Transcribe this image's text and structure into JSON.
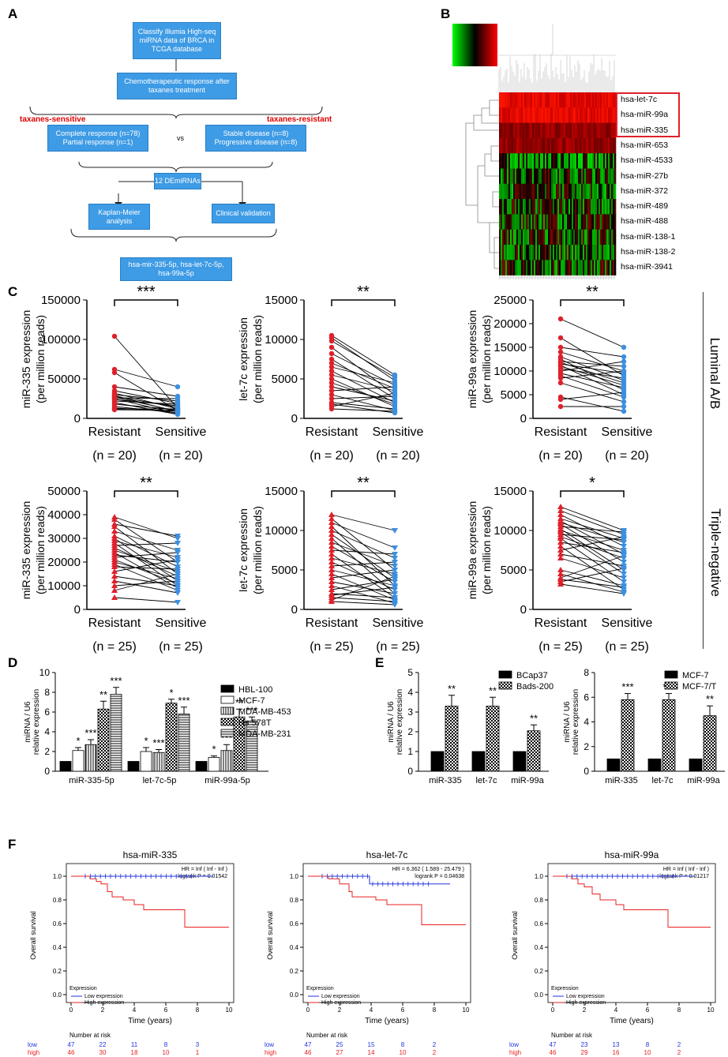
{
  "panel_labels": {
    "A": "A",
    "B": "B",
    "C": "C",
    "D": "D",
    "E": "E",
    "F": "F"
  },
  "flow": {
    "box1": "Classify Illumia High-seq miRNA data of BRCA in TCGA database",
    "box2": "Chemotherapeutic response after taxanes treatment",
    "sensitive_label": "taxanes-sensitive",
    "resistant_label": "taxanes-resistant",
    "box3": "Complete response (n=78) Partial response (n=1)",
    "vs": "vs",
    "box4": "Stable disease (n=8) Progressive disease (n=8)",
    "box5": "12 DEmiRNAs",
    "box6": "Kaplan-Meier analysis",
    "box7": "Clinical validation",
    "box8": "hsa-mir-335-5p, hsa-let-7c-5p, hsa-99a-5p"
  },
  "heatmap": {
    "genes": [
      "hsa-let-7c",
      "hsa-miR-99a",
      "hsa-miR-335",
      "hsa-miR-653",
      "hsa-miR-4533",
      "hsa-miR-27b",
      "hsa-miR-372",
      "hsa-miR-489",
      "hsa-miR-488",
      "hsa-miR-138-1",
      "hsa-miR-138-2",
      "hsa-miR-3941"
    ],
    "highlight_color": "#e0202a"
  },
  "side_labels": {
    "top": "Luminal A/B",
    "bottom": "Triple-negative"
  },
  "colors": {
    "resistant": "#e0202a",
    "sensitive": "#3b8fe0",
    "km_low": "#2233dd",
    "km_high": "#e82020"
  },
  "chart_data": [
    {
      "type": "paired-scatter",
      "id": "C1",
      "ylabel": "miR-335 expression",
      "ylabel2": "(per million reads)",
      "ylim": [
        0,
        150000
      ],
      "yticks": [
        "0",
        "50000",
        "100000",
        "150000"
      ],
      "categories": [
        "Resistant",
        "Sensitive"
      ],
      "n": [
        "(n = 20)",
        "(n = 20)"
      ],
      "sig": "***",
      "marker": "circle",
      "resistant": [
        104000,
        62000,
        58000,
        40000,
        35000,
        32000,
        30000,
        29000,
        28000,
        27000,
        26000,
        25000,
        24000,
        22000,
        20000,
        18000,
        15000,
        13000,
        12000,
        11000
      ],
      "sensitive": [
        13000,
        40000,
        10000,
        28000,
        19000,
        12000,
        22000,
        8000,
        14000,
        9000,
        25000,
        6000,
        16000,
        18000,
        5000,
        11000,
        7000,
        9000,
        12000,
        10000
      ]
    },
    {
      "type": "paired-scatter",
      "id": "C2",
      "ylabel": "let-7c expression",
      "ylabel2": "(per million reads)",
      "ylim": [
        0,
        15000
      ],
      "yticks": [
        "0",
        "5000",
        "10000",
        "15000"
      ],
      "categories": [
        "Resistant",
        "Sensitive"
      ],
      "n": [
        "(n = 20)",
        "(n = 20)"
      ],
      "sig": "**",
      "marker": "circle",
      "resistant": [
        10500,
        10200,
        9800,
        9000,
        8200,
        7500,
        7000,
        6500,
        6000,
        5500,
        5000,
        4500,
        4000,
        3500,
        3000,
        2500,
        2000,
        1800,
        1500,
        1200
      ],
      "sensitive": [
        5500,
        4800,
        5200,
        3000,
        4200,
        2500,
        3800,
        4500,
        2000,
        3500,
        1500,
        1800,
        2200,
        4000,
        1000,
        2800,
        1200,
        700,
        3200,
        900
      ]
    },
    {
      "type": "paired-scatter",
      "id": "C3",
      "ylabel": "miR-99a expression",
      "ylabel2": "(per million reads)",
      "ylim": [
        0,
        25000
      ],
      "yticks": [
        "0",
        "5000",
        "10000",
        "15000",
        "20000",
        "25000"
      ],
      "categories": [
        "Resistant",
        "Sensitive"
      ],
      "n": [
        "(n = 20)",
        "(n = 20)"
      ],
      "sig": "**",
      "marker": "circle",
      "resistant": [
        21000,
        17000,
        15000,
        14000,
        13000,
        12500,
        12000,
        11800,
        11500,
        11200,
        11000,
        10500,
        10000,
        9500,
        9000,
        8500,
        7500,
        4500,
        4000,
        2500
      ],
      "sensitive": [
        15000,
        9000,
        13000,
        10000,
        8000,
        6000,
        11000,
        7500,
        9500,
        5000,
        7000,
        8500,
        12000,
        6500,
        4500,
        10000,
        3500,
        1500,
        5500,
        2500
      ]
    },
    {
      "type": "paired-scatter",
      "id": "C4",
      "ylabel": "miR-335 expression",
      "ylabel2": "(per million reads)",
      "ylim": [
        0,
        50000
      ],
      "yticks": [
        "0",
        "10000",
        "20000",
        "30000",
        "40000",
        "50000"
      ],
      "categories": [
        "Resistant",
        "Sensitive"
      ],
      "n": [
        "(n = 25)",
        "(n = 25)"
      ],
      "sig": "**",
      "marker": "triangle",
      "resistant": [
        39000,
        38000,
        36000,
        35000,
        33000,
        31000,
        30000,
        29000,
        28000,
        27000,
        26000,
        25000,
        24000,
        23000,
        22000,
        21000,
        20000,
        19000,
        18000,
        16000,
        14000,
        12000,
        10000,
        8000,
        5000
      ],
      "sensitive": [
        30000,
        20000,
        31000,
        15000,
        25000,
        18000,
        12000,
        22000,
        10000,
        28000,
        14000,
        16000,
        9000,
        20000,
        24000,
        11000,
        13000,
        8000,
        17000,
        21000,
        10000,
        7000,
        12000,
        15000,
        3000
      ]
    },
    {
      "type": "paired-scatter",
      "id": "C5",
      "ylabel": "let-7c expression",
      "ylabel2": "(per million reads)",
      "ylim": [
        0,
        15000
      ],
      "yticks": [
        "0",
        "5000",
        "10000",
        "15000"
      ],
      "categories": [
        "Resistant",
        "Sensitive"
      ],
      "n": [
        "(n = 25)",
        "(n = 25)"
      ],
      "sig": "**",
      "marker": "triangle",
      "resistant": [
        12000,
        11500,
        11000,
        10500,
        10000,
        9500,
        9000,
        8500,
        8000,
        7500,
        7000,
        6500,
        6000,
        5500,
        5000,
        4500,
        4000,
        3500,
        3000,
        2500,
        2000,
        1800,
        1500,
        1200,
        1000
      ],
      "sensitive": [
        10000,
        5000,
        7800,
        3000,
        6500,
        4000,
        2000,
        5500,
        3500,
        7000,
        1500,
        4500,
        2500,
        6000,
        3000,
        1200,
        5000,
        2000,
        800,
        3800,
        1500,
        2800,
        1000,
        4200,
        600
      ]
    },
    {
      "type": "paired-scatter",
      "id": "C6",
      "ylabel": "miR-99a expression",
      "ylabel2": "(per million reads)",
      "ylim": [
        0,
        15000
      ],
      "yticks": [
        "0",
        "5000",
        "10000",
        "15000"
      ],
      "categories": [
        "Resistant",
        "Sensitive"
      ],
      "n": [
        "(n = 25)",
        "(n = 25)"
      ],
      "sig": "*",
      "marker": "triangle",
      "resistant": [
        13000,
        12500,
        12000,
        11500,
        11200,
        11000,
        10800,
        10500,
        10200,
        10000,
        9800,
        9500,
        9200,
        9000,
        8500,
        8000,
        7500,
        7000,
        6500,
        5000,
        4500,
        4000,
        3800,
        3500,
        3200
      ],
      "sensitive": [
        10000,
        9500,
        8000,
        9000,
        7000,
        8500,
        6000,
        9800,
        5000,
        7500,
        4500,
        8800,
        6500,
        3500,
        7200,
        2500,
        9200,
        5500,
        4000,
        3000,
        2200,
        6800,
        2800,
        5200,
        2000
      ]
    },
    {
      "type": "bar",
      "id": "D",
      "ylabel": "miRNA / U6",
      "ylabel2": "relative expression",
      "ylim": [
        0,
        10
      ],
      "yticks": [
        "0",
        "2",
        "4",
        "6",
        "8",
        "10"
      ],
      "categories": [
        "miR-335-5p",
        "let-7c-5p",
        "miR-99a-5p"
      ],
      "series": [
        {
          "name": "HBL-100",
          "values": [
            1,
            1,
            1
          ],
          "err": [
            0,
            0,
            0
          ],
          "sig": [
            "",
            "",
            ""
          ]
        },
        {
          "name": "MCF-7",
          "values": [
            2.1,
            2.0,
            1.4
          ],
          "err": [
            0.3,
            0.4,
            0.15
          ],
          "sig": [
            "*",
            "*",
            "*"
          ]
        },
        {
          "name": "MDA-MB-453",
          "values": [
            2.7,
            1.9,
            2.1
          ],
          "err": [
            0.5,
            0.3,
            0.6
          ],
          "sig": [
            "***",
            "***",
            "***"
          ]
        },
        {
          "name": "Hs 578T",
          "values": [
            6.3,
            6.9,
            5.5
          ],
          "err": [
            0.8,
            0.4,
            0.8
          ],
          "sig": [
            "**",
            "*",
            "**"
          ]
        },
        {
          "name": "MDA-MB-231",
          "values": [
            7.8,
            5.8,
            5.1
          ],
          "err": [
            0.7,
            0.7,
            0.4
          ],
          "sig": [
            "***",
            "***",
            "***"
          ]
        }
      ]
    },
    {
      "type": "bar",
      "id": "E1",
      "ylabel": "miRNA / U6",
      "ylabel2": "relative expression",
      "ylim": [
        0,
        5
      ],
      "yticks": [
        "0",
        "1",
        "2",
        "3",
        "4",
        "5"
      ],
      "categories": [
        "miR-335",
        "let-7c",
        "miR-99a"
      ],
      "series": [
        {
          "name": "BCap37",
          "values": [
            1,
            1,
            1
          ],
          "err": [
            0,
            0,
            0
          ],
          "sig": [
            "",
            "",
            ""
          ]
        },
        {
          "name": "Bads-200",
          "values": [
            3.3,
            3.3,
            2.05
          ],
          "err": [
            0.55,
            0.45,
            0.3
          ],
          "sig": [
            "**",
            "**",
            "**"
          ]
        }
      ]
    },
    {
      "type": "bar",
      "id": "E2",
      "ylabel": "miRNA / U6",
      "ylabel2": "relative expression",
      "ylim": [
        0,
        8
      ],
      "yticks": [
        "0",
        "2",
        "4",
        "6",
        "8"
      ],
      "categories": [
        "miR-335",
        "let-7c",
        "miR-99a"
      ],
      "series": [
        {
          "name": "MCF-7",
          "values": [
            1,
            1,
            1
          ],
          "err": [
            0,
            0,
            0
          ],
          "sig": [
            "",
            "",
            ""
          ]
        },
        {
          "name": "MCF-7/T",
          "values": [
            5.8,
            5.8,
            4.5
          ],
          "err": [
            0.5,
            0.5,
            0.8
          ],
          "sig": [
            "***",
            "***",
            "**"
          ]
        }
      ]
    },
    {
      "type": "line",
      "id": "F1",
      "title": "hsa-miR-335",
      "hr": "HR = Inf ( Inf - Inf )",
      "logrank": "logrank P = 0.01542",
      "ylabel": "Overall survival",
      "xlabel": "Time (years)",
      "xticks": [
        "0",
        "2",
        "4",
        "6",
        "8",
        "10"
      ],
      "yticks": [
        "0.0",
        "0.2",
        "0.4",
        "0.6",
        "0.8",
        "1.0"
      ],
      "xlim": [
        0,
        10
      ],
      "ylim": [
        0,
        1
      ],
      "legend_title": "Expression",
      "legend": [
        "Low expression",
        "High expression"
      ],
      "low": [
        [
          0,
          1
        ],
        [
          9,
          1
        ]
      ],
      "high": [
        [
          0,
          1
        ],
        [
          1.2,
          1
        ],
        [
          1.2,
          0.978
        ],
        [
          1.6,
          0.978
        ],
        [
          1.6,
          0.956
        ],
        [
          1.9,
          0.956
        ],
        [
          1.9,
          0.935
        ],
        [
          2.3,
          0.935
        ],
        [
          2.3,
          0.87
        ],
        [
          2.6,
          0.87
        ],
        [
          2.6,
          0.826
        ],
        [
          3.3,
          0.826
        ],
        [
          3.3,
          0.8
        ],
        [
          4,
          0.8
        ],
        [
          4,
          0.76
        ],
        [
          4.6,
          0.76
        ],
        [
          4.6,
          0.717
        ],
        [
          7.2,
          0.717
        ],
        [
          7.2,
          0.57
        ],
        [
          10,
          0.57
        ]
      ],
      "risk_title": "Number at risk",
      "risk_low": [
        "47",
        "22",
        "11",
        "8",
        "3"
      ],
      "risk_high": [
        "46",
        "30",
        "18",
        "10",
        "1"
      ]
    },
    {
      "type": "line",
      "id": "F2",
      "title": "hsa-let-7c",
      "hr": "HR = 6.362 ( 1.589 - 25.479 )",
      "logrank": "logrank P = 0.04638",
      "ylabel": "Overall survival",
      "xlabel": "Time (years)",
      "xticks": [
        "0",
        "2",
        "4",
        "6",
        "8",
        "10"
      ],
      "yticks": [
        "0.0",
        "0.2",
        "0.4",
        "0.6",
        "0.8",
        "1.0"
      ],
      "xlim": [
        0,
        10
      ],
      "ylim": [
        0,
        1
      ],
      "legend_title": "Expression",
      "legend": [
        "Low expression",
        "High expression"
      ],
      "low": [
        [
          0,
          1
        ],
        [
          3.9,
          1
        ],
        [
          3.9,
          0.935
        ],
        [
          9,
          0.935
        ]
      ],
      "high": [
        [
          0,
          1
        ],
        [
          1.3,
          1
        ],
        [
          1.3,
          0.978
        ],
        [
          2,
          0.978
        ],
        [
          2,
          0.935
        ],
        [
          2.6,
          0.935
        ],
        [
          2.6,
          0.87
        ],
        [
          2.8,
          0.87
        ],
        [
          2.8,
          0.826
        ],
        [
          4.3,
          0.826
        ],
        [
          4.3,
          0.8
        ],
        [
          5,
          0.8
        ],
        [
          5,
          0.76
        ],
        [
          7.2,
          0.76
        ],
        [
          7.2,
          0.59
        ],
        [
          10,
          0.59
        ]
      ],
      "risk_title": "Number at risk",
      "risk_low": [
        "47",
        "25",
        "15",
        "8",
        "2"
      ],
      "risk_high": [
        "46",
        "27",
        "14",
        "10",
        "2"
      ]
    },
    {
      "type": "line",
      "id": "F3",
      "title": "hsa-miR-99a",
      "hr": "HR = Inf ( Inf - Inf )",
      "logrank": "logrank P = 0.01217",
      "ylabel": "Overall survival",
      "xlabel": "Time (years)",
      "xticks": [
        "0",
        "2",
        "4",
        "6",
        "8",
        "10"
      ],
      "yticks": [
        "0.0",
        "0.2",
        "0.4",
        "0.6",
        "0.8",
        "1.0"
      ],
      "xlim": [
        0,
        10
      ],
      "ylim": [
        0,
        1
      ],
      "legend_title": "Expression",
      "legend": [
        "Low expression",
        "High expression"
      ],
      "low": [
        [
          0,
          1
        ],
        [
          9,
          1
        ]
      ],
      "high": [
        [
          0,
          1
        ],
        [
          1.2,
          1
        ],
        [
          1.2,
          0.978
        ],
        [
          1.6,
          0.978
        ],
        [
          1.6,
          0.935
        ],
        [
          2,
          0.935
        ],
        [
          2,
          0.91
        ],
        [
          2.5,
          0.91
        ],
        [
          2.5,
          0.85
        ],
        [
          3,
          0.85
        ],
        [
          3,
          0.8
        ],
        [
          4,
          0.8
        ],
        [
          4,
          0.76
        ],
        [
          4.5,
          0.76
        ],
        [
          4.5,
          0.717
        ],
        [
          7.3,
          0.717
        ],
        [
          7.3,
          0.57
        ],
        [
          10,
          0.57
        ]
      ],
      "risk_title": "Number at risk",
      "risk_low": [
        "47",
        "23",
        "13",
        "8",
        "2"
      ],
      "risk_high": [
        "46",
        "29",
        "16",
        "10",
        "2"
      ]
    }
  ]
}
